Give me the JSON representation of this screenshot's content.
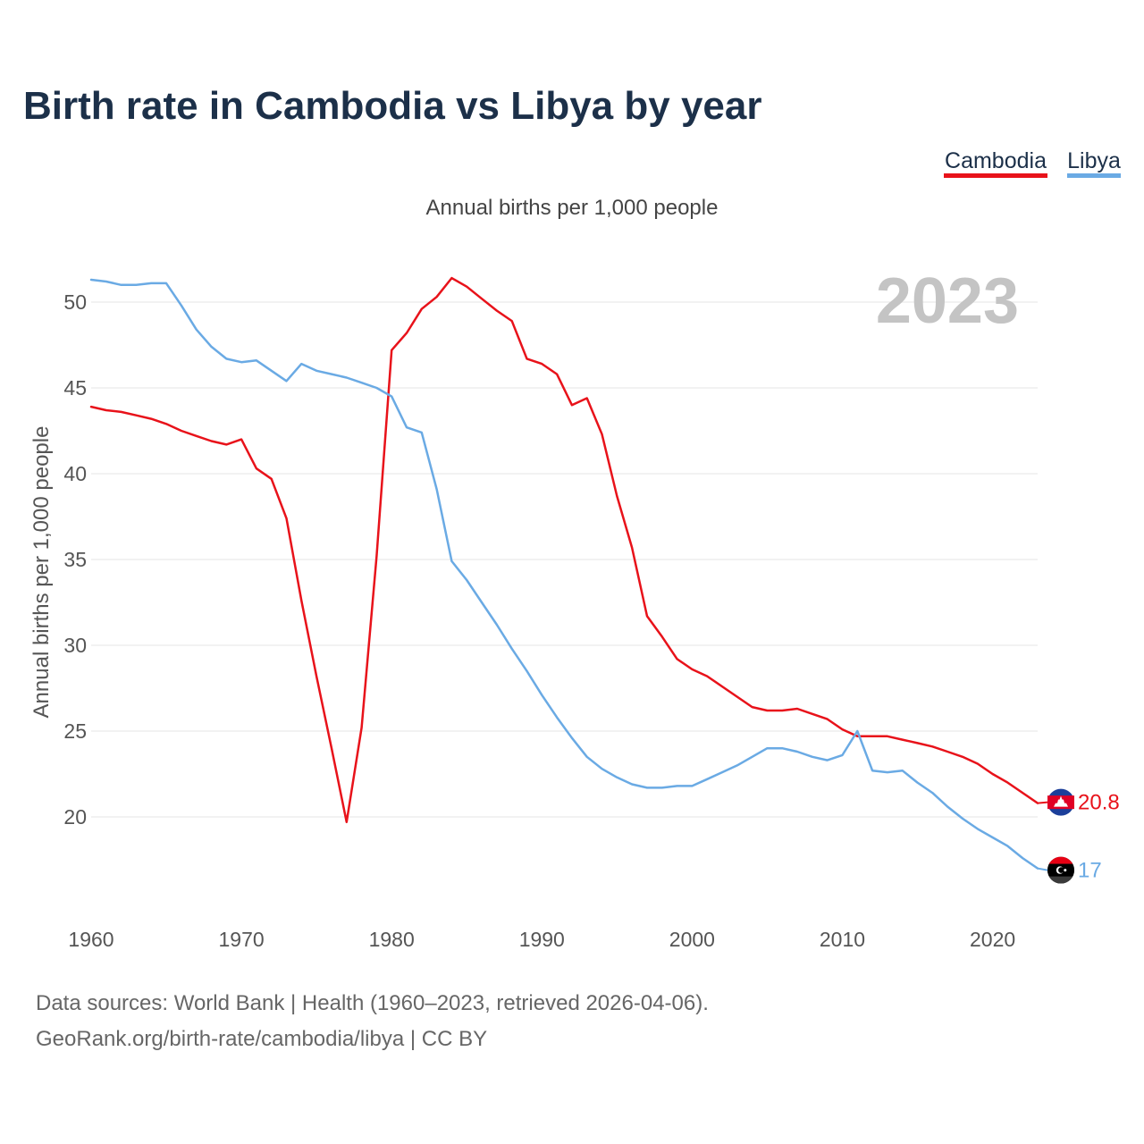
{
  "chart_data": {
    "type": "line",
    "title": "Birth rate in Cambodia vs Libya by year",
    "subtitle": "Annual births per 1,000 people",
    "ylabel": "Annual births per 1,000 people",
    "xlabel": "",
    "year_label": "2023",
    "xlim": [
      1960,
      2023
    ],
    "ylim": [
      15,
      52.5
    ],
    "x_ticks": [
      1960,
      1970,
      1980,
      1990,
      2000,
      2010,
      2020
    ],
    "y_ticks": [
      20,
      25,
      30,
      35,
      40,
      45,
      50
    ],
    "grid": true,
    "legend_position": "top-right",
    "x": [
      1960,
      1961,
      1962,
      1963,
      1964,
      1965,
      1966,
      1967,
      1968,
      1969,
      1970,
      1971,
      1972,
      1973,
      1974,
      1975,
      1976,
      1977,
      1978,
      1979,
      1980,
      1981,
      1982,
      1983,
      1984,
      1985,
      1986,
      1987,
      1988,
      1989,
      1990,
      1991,
      1992,
      1993,
      1994,
      1995,
      1996,
      1997,
      1998,
      1999,
      2000,
      2001,
      2002,
      2003,
      2004,
      2005,
      2006,
      2007,
      2008,
      2009,
      2010,
      2011,
      2012,
      2013,
      2014,
      2015,
      2016,
      2017,
      2018,
      2019,
      2020,
      2021,
      2022,
      2023
    ],
    "series": [
      {
        "name": "Cambodia",
        "color": "#e8121a",
        "end_label": "20.8",
        "values": [
          43.9,
          43.7,
          43.6,
          43.4,
          43.2,
          42.9,
          42.5,
          42.2,
          41.9,
          41.7,
          42.0,
          40.3,
          39.7,
          37.4,
          32.6,
          28.2,
          24.0,
          19.7,
          25.2,
          35.2,
          47.2,
          48.2,
          49.6,
          50.3,
          51.4,
          50.9,
          50.2,
          49.5,
          48.9,
          46.7,
          46.4,
          45.8,
          44.0,
          44.4,
          42.3,
          38.7,
          35.7,
          31.7,
          30.5,
          29.2,
          28.6,
          28.2,
          27.6,
          27.0,
          26.4,
          26.2,
          26.2,
          26.3,
          26.0,
          25.7,
          25.1,
          24.7,
          24.7,
          24.7,
          24.5,
          24.3,
          24.1,
          23.8,
          23.5,
          23.1,
          22.5,
          22.0,
          21.4,
          20.8
        ]
      },
      {
        "name": "Libya",
        "color": "#6aaae4",
        "end_label": "17",
        "values": [
          51.3,
          51.2,
          51.0,
          51.0,
          51.1,
          51.1,
          49.8,
          48.4,
          47.4,
          46.7,
          46.5,
          46.6,
          46.0,
          45.4,
          46.4,
          46.0,
          45.8,
          45.6,
          45.3,
          45.0,
          44.5,
          42.7,
          42.4,
          39.1,
          34.9,
          33.8,
          32.5,
          31.2,
          29.8,
          28.5,
          27.1,
          25.8,
          24.6,
          23.5,
          22.8,
          22.3,
          21.9,
          21.7,
          21.7,
          21.8,
          21.8,
          22.2,
          22.6,
          23.0,
          23.5,
          24.0,
          24.0,
          23.8,
          23.5,
          23.3,
          23.6,
          25.0,
          22.7,
          22.6,
          22.7,
          22.0,
          21.4,
          20.6,
          19.9,
          19.3,
          18.8,
          18.3,
          17.6,
          17.0
        ]
      }
    ]
  },
  "footer": {
    "source_line": "Data sources: World Bank | Health (1960–2023, retrieved 2026-04-06).",
    "url_line": "GeoRank.org/birth-rate/cambodia/libya | CC BY"
  }
}
